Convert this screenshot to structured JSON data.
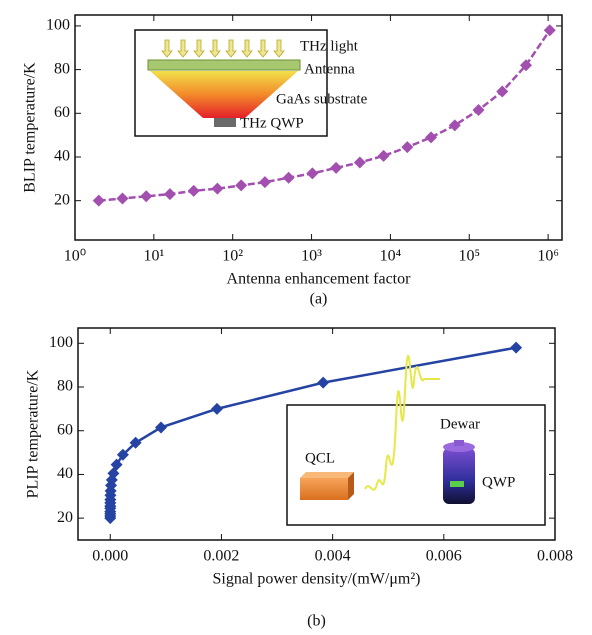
{
  "chart_data": [
    {
      "type": "line",
      "label": "(a)",
      "xlabel": "Antenna enhancement factor",
      "ylabel": "BLIP temperature/K",
      "log_x": true,
      "color": "#a24fb0",
      "marker": "diamond",
      "x": [
        2,
        4,
        8,
        16,
        32,
        64,
        128,
        256,
        512,
        1024,
        2048,
        4096,
        8192,
        16384,
        32768,
        65536,
        131072,
        262144,
        524288,
        1048576
      ],
      "values": [
        20,
        21,
        22,
        23,
        24.5,
        25.5,
        27,
        28.5,
        30.5,
        32.5,
        35,
        37.5,
        40.5,
        44.5,
        49,
        54.5,
        61.5,
        70,
        82,
        98
      ],
      "xlim": [
        1,
        1500000
      ],
      "ylim": [
        2,
        105
      ],
      "xticks": [
        {
          "value": 1,
          "label": "10⁰"
        },
        {
          "value": 10,
          "label": "10¹"
        },
        {
          "value": 100,
          "label": "10²"
        },
        {
          "value": 1000,
          "label": "10³"
        },
        {
          "value": 10000,
          "label": "10⁴"
        },
        {
          "value": 100000,
          "label": "10⁵"
        },
        {
          "value": 1000000,
          "label": "10⁶"
        }
      ],
      "yticks": [
        20,
        40,
        60,
        80,
        100
      ],
      "annotations": [
        "THz light",
        "Antenna",
        "GaAs substrate",
        "THz QWP"
      ]
    },
    {
      "type": "line",
      "label": "(b)",
      "xlabel": "Signal power density/(mW/μm²)",
      "ylabel": "PLIP temperature/K",
      "log_x": false,
      "color": "#2443a3",
      "marker": "diamond",
      "x": [
        1.39e-08,
        2.78e-08,
        5.57e-08,
        1.11e-07,
        2.23e-07,
        4.46e-07,
        8.91e-07,
        1.78e-06,
        3.56e-06,
        7.13e-06,
        1.43e-05,
        2.85e-05,
        5.7e-05,
        0.000114,
        0.000228,
        0.000456,
        0.000913,
        0.00192,
        0.00383,
        0.0073
      ],
      "values": [
        20,
        21,
        22,
        23,
        24.5,
        25.5,
        27,
        28.5,
        30.5,
        32.5,
        35,
        37.5,
        40.5,
        44.5,
        49,
        54.5,
        61.5,
        70,
        82,
        98
      ],
      "xlim": [
        -0.00058,
        0.008
      ],
      "ylim": [
        10,
        107
      ],
      "xticks": [
        {
          "value": 0,
          "label": "0.000"
        },
        {
          "value": 0.002,
          "label": "0.002"
        },
        {
          "value": 0.004,
          "label": "0.004"
        },
        {
          "value": 0.006,
          "label": "0.006"
        },
        {
          "value": 0.008,
          "label": "0.008"
        }
      ],
      "yticks": [
        20,
        40,
        60,
        80,
        100
      ],
      "annotations": [
        "QCL",
        "Dewar",
        "QWP"
      ]
    }
  ]
}
